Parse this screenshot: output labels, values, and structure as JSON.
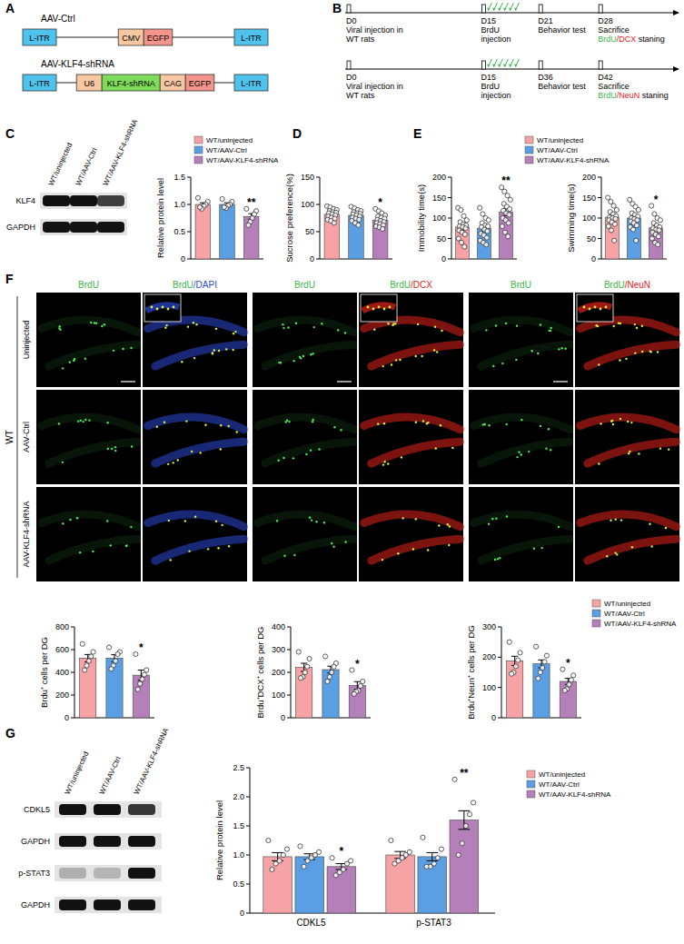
{
  "panels": [
    "A",
    "B",
    "C",
    "D",
    "E",
    "F",
    "G"
  ],
  "constructs": [
    {
      "name": "AAV-Ctrl",
      "elements": [
        {
          "label": "L-ITR",
          "color": "#4fc3ec"
        },
        {
          "label": "CMV",
          "color": "#f6c7a1"
        },
        {
          "label": "EGFP",
          "color": "#f4958c"
        },
        {
          "label": "L-ITR",
          "color": "#4fc3ec"
        }
      ]
    },
    {
      "name": "AAV-KLF4-shRNA",
      "elements": [
        {
          "label": "L-ITR",
          "color": "#4fc3ec"
        },
        {
          "label": "U6",
          "color": "#f6c7a1"
        },
        {
          "label": "KLF4-shRNA",
          "color": "#7fdc5a"
        },
        {
          "label": "CAG",
          "color": "#f6c7a1"
        },
        {
          "label": "EGFP",
          "color": "#f4958c"
        },
        {
          "label": "L-ITR",
          "color": "#4fc3ec"
        }
      ]
    }
  ],
  "timelines": [
    {
      "events": [
        {
          "day": "D0",
          "lines": [
            "Viral injection in",
            "WT rats"
          ]
        },
        {
          "day": "D15",
          "lines": [
            "BrdU",
            "injection"
          ]
        },
        {
          "day": "D21",
          "lines": [
            "Behavior test"
          ]
        },
        {
          "day": "D28",
          "lines": [
            "Sacrifice"
          ]
        }
      ],
      "stain": {
        "parts": [
          "BrdU",
          "/DCX",
          " staning"
        ],
        "colors": [
          "#39b54a",
          "#e2231a",
          "#000000"
        ]
      }
    },
    {
      "events": [
        {
          "day": "D0",
          "lines": [
            "Viral injection in",
            "WT rats"
          ]
        },
        {
          "day": "D15",
          "lines": [
            "BrdU",
            "injection"
          ]
        },
        {
          "day": "D36",
          "lines": [
            "Behavior test"
          ]
        },
        {
          "day": "D42",
          "lines": [
            "Sacrifice"
          ]
        }
      ],
      "stain": {
        "parts": [
          "BrdU",
          "/NeuN",
          " staning"
        ],
        "colors": [
          "#39b54a",
          "#e2231a",
          "#000000"
        ]
      }
    }
  ],
  "blots": [
    {
      "lanes": [
        "WT/uninjected",
        "WT/AAV-Ctrl",
        "WT/AAV-KLF4-shRNA"
      ],
      "rows": [
        "KLF4",
        "GAPDH"
      ]
    },
    {
      "lanes": [
        "WT/uninjected",
        "WT/AAV-Ctrl",
        "WT/AAV-KLF4-shRNA"
      ],
      "rows": [
        "CDKL5",
        "GAPDH",
        "p-STAT3",
        "GAPDH"
      ]
    }
  ],
  "image_grid": {
    "group": "WT",
    "rows": [
      "Uninjected",
      "AAV-Ctrl",
      "AAV-KLF4-shRNA"
    ],
    "columns": [
      {
        "parts": [
          "BrdU"
        ],
        "colors": [
          "#39b54a"
        ]
      },
      {
        "parts": [
          "BrdU",
          "/DAPI"
        ],
        "colors": [
          "#39b54a",
          "#2e49d6"
        ]
      },
      {
        "parts": [
          "BrdU"
        ],
        "colors": [
          "#39b54a"
        ]
      },
      {
        "parts": [
          "BrdU",
          "/DCX"
        ],
        "colors": [
          "#39b54a",
          "#e2231a"
        ]
      },
      {
        "parts": [
          "BrdU"
        ],
        "colors": [
          "#39b54a"
        ]
      },
      {
        "parts": [
          "BrdU",
          "/NeuN"
        ],
        "colors": [
          "#39b54a",
          "#e2231a"
        ]
      }
    ]
  },
  "chart_data": [
    {
      "type": "bar",
      "ylabel": "Relative protein level",
      "categories": [
        "WT/uninjected",
        "WT/AAV-Ctrl",
        "WT/AAV-KLF4-shRNA"
      ],
      "colors": [
        "#f7a3a6",
        "#5a9fe3",
        "#b57fba"
      ],
      "values": [
        1.0,
        1.0,
        0.78
      ],
      "errors": [
        0.03,
        0.03,
        0.05
      ],
      "points": [
        [
          1.12,
          1.05,
          1.0,
          0.97,
          0.92,
          0.95
        ],
        [
          1.1,
          1.05,
          1.0,
          0.98,
          0.93,
          0.95
        ],
        [
          0.92,
          0.88,
          0.82,
          0.75,
          0.68,
          0.62
        ]
      ],
      "significance": [
        null,
        null,
        "**"
      ],
      "ylim": [
        0,
        1.5
      ],
      "yticks": [
        0,
        0.5,
        {
          "value": 1,
          "label": "1.0"
        },
        1.5
      ],
      "tick_labels": "y",
      "legend": "top-right"
    },
    {
      "type": "bar",
      "ylabel": "Sucrose preference(%)",
      "categories": [
        "WT/uninjected",
        "WT/AAV-Ctrl",
        "WT/AAV-KLF4-shRNA"
      ],
      "colors": [
        "#f7a3a6",
        "#5a9fe3",
        "#b57fba"
      ],
      "values": [
        82,
        80,
        71
      ],
      "errors": [
        2.5,
        2.5,
        2.5
      ],
      "points": [
        [
          97,
          95,
          92,
          90,
          88,
          86,
          85,
          84,
          82,
          80,
          78,
          76,
          74,
          72,
          70,
          66
        ],
        [
          96,
          93,
          90,
          88,
          86,
          84,
          83,
          82,
          80,
          78,
          76,
          74,
          72,
          70,
          66,
          62
        ],
        [
          92,
          88,
          84,
          80,
          78,
          76,
          74,
          72,
          70,
          68,
          66,
          64,
          62,
          60,
          58,
          55
        ]
      ],
      "significance": [
        null,
        null,
        "*"
      ],
      "ylim": [
        0,
        150
      ],
      "yticks": [
        0,
        50,
        100,
        150
      ],
      "tick_labels": "y"
    },
    {
      "type": "bar",
      "ylabel": "Immobility time(s)",
      "categories": [
        "WT/uninjected",
        "WT/AAV-Ctrl",
        "WT/AAV-KLF4-shRNA"
      ],
      "colors": [
        "#f7a3a6",
        "#5a9fe3",
        "#b57fba"
      ],
      "values": [
        78,
        75,
        115
      ],
      "errors": [
        7,
        7,
        9
      ],
      "points": [
        [
          125,
          120,
          105,
          95,
          90,
          85,
          82,
          80,
          78,
          75,
          70,
          65,
          60,
          50,
          40,
          30
        ],
        [
          125,
          110,
          100,
          95,
          88,
          82,
          80,
          78,
          72,
          68,
          62,
          58,
          52,
          45,
          40,
          35
        ],
        [
          175,
          165,
          155,
          145,
          135,
          128,
          122,
          118,
          112,
          108,
          100,
          95,
          88,
          80,
          65,
          55
        ]
      ],
      "significance": [
        null,
        null,
        "**"
      ],
      "ylim": [
        0,
        200
      ],
      "yticks": [
        0,
        50,
        100,
        150,
        200
      ],
      "tick_labels": "y",
      "legend": "top-right"
    },
    {
      "type": "bar",
      "ylabel": "Swimming time(s)",
      "categories": [
        "WT/uninjected",
        "WT/AAV-Ctrl",
        "WT/AAV-KLF4-shRNA"
      ],
      "colors": [
        "#f7a3a6",
        "#5a9fe3",
        "#b57fba"
      ],
      "values": [
        102,
        100,
        76
      ],
      "errors": [
        6,
        6,
        6
      ],
      "points": [
        [
          150,
          140,
          130,
          120,
          115,
          110,
          105,
          102,
          100,
          98,
          95,
          90,
          85,
          80,
          70,
          45
        ],
        [
          145,
          135,
          128,
          120,
          112,
          108,
          104,
          100,
          98,
          95,
          92,
          88,
          82,
          78,
          72,
          45
        ],
        [
          130,
          110,
          100,
          95,
          88,
          82,
          78,
          75,
          72,
          70,
          65,
          60,
          55,
          50,
          40,
          35
        ]
      ],
      "significance": [
        null,
        null,
        "*"
      ],
      "ylim": [
        0,
        200
      ],
      "yticks": [
        0,
        50,
        100,
        150,
        200
      ],
      "tick_labels": "y"
    },
    {
      "type": "bar",
      "ylabel": "Brdu⁺ cells per DG",
      "categories": [
        "WT/uninjected",
        "WT/AAV-Ctrl",
        "WT/AAV-KLF4-shRNA"
      ],
      "colors": [
        "#f7a3a6",
        "#5a9fe3",
        "#b57fba"
      ],
      "values": [
        525,
        525,
        375
      ],
      "errors": [
        32,
        30,
        45
      ],
      "points": [
        [
          650,
          580,
          540,
          500,
          460,
          420
        ],
        [
          620,
          580,
          560,
          500,
          460,
          430
        ],
        [
          560,
          420,
          380,
          340,
          300,
          250
        ]
      ],
      "significance": [
        null,
        null,
        "*"
      ],
      "ylim": [
        0,
        800
      ],
      "yticks": [
        0,
        200,
        400,
        600,
        800
      ],
      "tick_labels": "y"
    },
    {
      "type": "bar",
      "ylabel": "Brdu⁺DCX⁺ cells per DG",
      "categories": [
        "WT/uninjected",
        "WT/AAV-Ctrl",
        "WT/AAV-KLF4-shRNA"
      ],
      "colors": [
        "#f7a3a6",
        "#5a9fe3",
        "#b57fba"
      ],
      "values": [
        222,
        212,
        142
      ],
      "errors": [
        18,
        15,
        17
      ],
      "points": [
        [
          290,
          260,
          225,
          200,
          180,
          175
        ],
        [
          270,
          240,
          225,
          200,
          180,
          160
        ],
        [
          210,
          160,
          140,
          120,
          115,
          105
        ]
      ],
      "significance": [
        null,
        null,
        "*"
      ],
      "ylim": [
        0,
        400
      ],
      "yticks": [
        0,
        100,
        200,
        300,
        400
      ],
      "tick_labels": "y"
    },
    {
      "type": "bar",
      "ylabel": "Brdu⁺Neun⁺ cells per DG",
      "categories": [
        "WT/uninjected",
        "WT/AAV-Ctrl",
        "WT/AAV-KLF4-shRNA"
      ],
      "colors": [
        "#f7a3a6",
        "#5a9fe3",
        "#b57fba"
      ],
      "values": [
        188,
        178,
        120
      ],
      "errors": [
        15,
        13,
        10
      ],
      "points": [
        [
          250,
          215,
          190,
          170,
          150,
          145
        ],
        [
          235,
          205,
          185,
          165,
          150,
          130
        ],
        [
          160,
          140,
          125,
          110,
          95,
          90
        ]
      ],
      "significance": [
        null,
        null,
        "*"
      ],
      "ylim": [
        0,
        300
      ],
      "yticks": [
        0,
        100,
        200,
        300
      ],
      "tick_labels": "y",
      "legend": "top-right"
    },
    {
      "type": "bar",
      "ylabel": "Relative protein level",
      "categories": [
        "CDKL5",
        "p-STAT3"
      ],
      "series": [
        {
          "name": "WT/uninjected",
          "color": "#f7a3a6",
          "values": [
            0.97,
            1.0
          ],
          "errors": [
            0.07,
            0.06
          ],
          "points": [
            [
              1.25,
              1.1,
              1.0,
              0.9,
              0.85,
              0.75
            ],
            [
              1.25,
              1.05,
              1.0,
              0.95,
              0.9,
              0.85
            ]
          ],
          "significance": [
            null,
            null
          ]
        },
        {
          "name": "WT/AAV-Ctrl",
          "color": "#5a9fe3",
          "values": [
            0.97,
            0.97
          ],
          "errors": [
            0.05,
            0.07
          ],
          "points": [
            [
              1.15,
              1.05,
              1.0,
              0.95,
              0.9,
              0.8
            ],
            [
              1.3,
              1.1,
              0.95,
              0.85,
              0.8,
              0.8
            ]
          ],
          "significance": [
            null,
            null
          ]
        },
        {
          "name": "WT/AAV-KLF4-shRNA",
          "color": "#b57fba",
          "values": [
            0.8,
            1.6
          ],
          "errors": [
            0.05,
            0.16
          ],
          "points": [
            [
              0.95,
              0.9,
              0.85,
              0.75,
              0.7,
              0.65
            ],
            [
              2.3,
              1.9,
              1.7,
              1.5,
              1.2,
              1.0
            ]
          ],
          "significance": [
            "*",
            "**"
          ]
        }
      ],
      "ylim": [
        0,
        2.5
      ],
      "yticks": [
        0,
        0.5,
        {
          "value": 1,
          "label": "1.0"
        },
        1.5,
        {
          "value": 2,
          "label": "2.0"
        },
        2.5
      ],
      "legend": "right"
    }
  ]
}
